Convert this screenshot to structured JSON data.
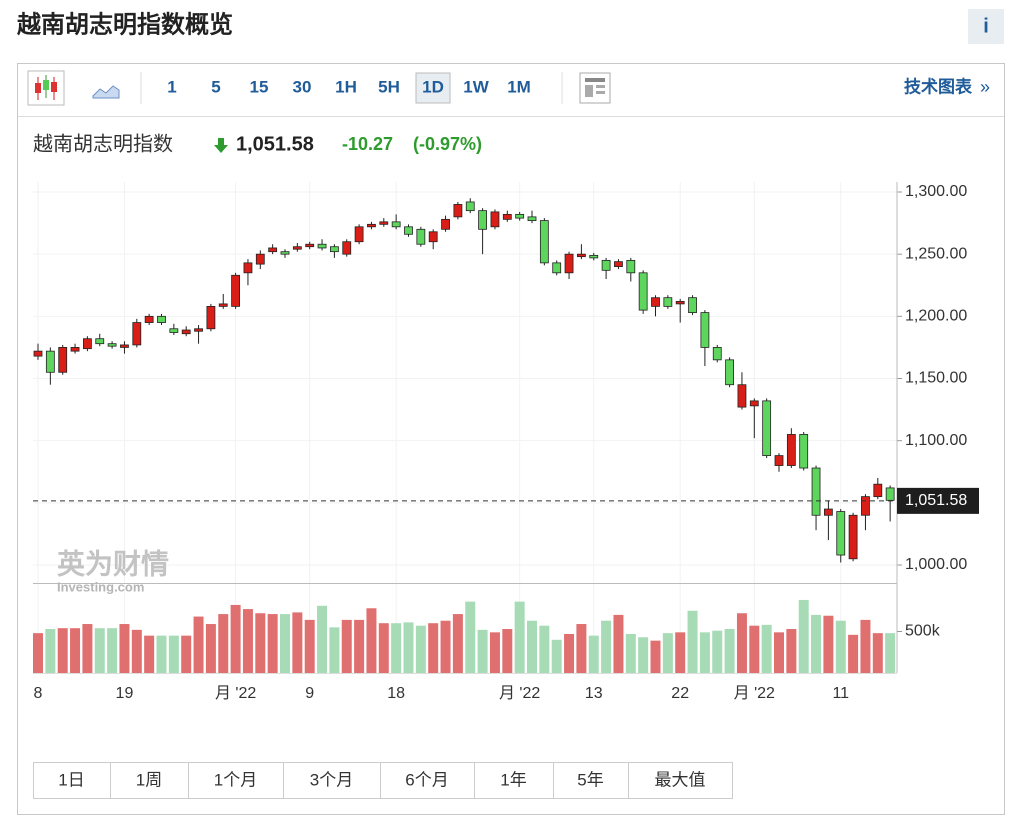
{
  "header": {
    "title": "越南胡志明指数概览",
    "info": "i"
  },
  "toolbar": {
    "intervals": [
      "1",
      "5",
      "15",
      "30",
      "1H",
      "5H",
      "1D",
      "1W",
      "1M"
    ],
    "selected": "1D",
    "advanced": "技术图表",
    "more": "»"
  },
  "quote": {
    "name": "越南胡志明指数",
    "price": "1,051.58",
    "change": "-10.27",
    "change_pct": "(-0.97%)"
  },
  "watermark": {
    "brand": "英为财情",
    "site": "Investing.com"
  },
  "periods": [
    "1日",
    "1周",
    "1个月",
    "3个月",
    "6个月",
    "1年",
    "5年",
    "最大值"
  ],
  "chart_data": {
    "type": "candlestick",
    "categories": [
      "8",
      null,
      null,
      null,
      null,
      null,
      null,
      "19",
      null,
      null,
      null,
      null,
      null,
      null,
      null,
      null,
      "月 '22",
      null,
      null,
      null,
      null,
      null,
      "9",
      null,
      null,
      null,
      null,
      null,
      null,
      "18",
      null,
      null,
      null,
      null,
      null,
      null,
      null,
      null,
      null,
      "月 '22",
      null,
      null,
      null,
      null,
      null,
      "13",
      null,
      null,
      null,
      null,
      null,
      null,
      "22",
      null,
      null,
      null,
      null,
      null,
      "月 '22",
      null,
      null,
      null,
      null,
      null,
      null,
      "11",
      null,
      null,
      null,
      null
    ],
    "open": [
      1168,
      1172,
      1155,
      1172,
      1174,
      1182,
      1178,
      1175,
      1177,
      1195,
      1200,
      1190,
      1186,
      1188,
      1190,
      1208,
      1208,
      1235,
      1242,
      1252,
      1252,
      1254,
      1256,
      1258,
      1256,
      1250,
      1260,
      1272,
      1274,
      1276,
      1272,
      1270,
      1260,
      1270,
      1280,
      1292,
      1285,
      1272,
      1278,
      1282,
      1280,
      1277,
      1243,
      1235,
      1248,
      1249,
      1245,
      1240,
      1245,
      1235,
      1208,
      1215,
      1210,
      1215,
      1203,
      1175,
      1165,
      1127,
      1128,
      1132,
      1080,
      1080,
      1105,
      1078,
      1040,
      1043,
      1005,
      1040,
      1055,
      1062
    ],
    "high": [
      1178,
      1175,
      1177,
      1178,
      1184,
      1186,
      1180,
      1180,
      1198,
      1202,
      1202,
      1194,
      1192,
      1193,
      1210,
      1218,
      1235,
      1246,
      1253,
      1258,
      1254,
      1259,
      1260,
      1262,
      1258,
      1262,
      1274,
      1276,
      1279,
      1282,
      1274,
      1272,
      1270,
      1281,
      1292,
      1295,
      1287,
      1286,
      1285,
      1284,
      1285,
      1279,
      1245,
      1252,
      1258,
      1251,
      1247,
      1246,
      1247,
      1237,
      1217,
      1217,
      1214,
      1217,
      1205,
      1177,
      1167,
      1155,
      1134,
      1134,
      1090,
      1110,
      1107,
      1080,
      1052,
      1045,
      1042,
      1057,
      1070,
      1064
    ],
    "low": [
      1165,
      1145,
      1153,
      1170,
      1172,
      1176,
      1174,
      1170,
      1175,
      1193,
      1193,
      1185,
      1184,
      1178,
      1188,
      1206,
      1206,
      1225,
      1238,
      1250,
      1247,
      1252,
      1254,
      1253,
      1247,
      1248,
      1258,
      1270,
      1272,
      1270,
      1264,
      1256,
      1254,
      1268,
      1278,
      1283,
      1250,
      1270,
      1276,
      1277,
      1275,
      1241,
      1233,
      1230,
      1246,
      1245,
      1230,
      1238,
      1228,
      1202,
      1200,
      1206,
      1195,
      1201,
      1160,
      1163,
      1143,
      1125,
      1102,
      1086,
      1075,
      1078,
      1076,
      1028,
      1020,
      1002,
      1003,
      1028,
      1053,
      1035
    ],
    "close": [
      1172,
      1155,
      1175,
      1175,
      1182,
      1178,
      1176,
      1177,
      1195,
      1200,
      1195,
      1187,
      1189,
      1190,
      1208,
      1210,
      1233,
      1243,
      1250,
      1255,
      1250,
      1256,
      1258,
      1255,
      1252,
      1260,
      1272,
      1274,
      1276,
      1272,
      1266,
      1258,
      1268,
      1278,
      1290,
      1285,
      1270,
      1284,
      1282,
      1279,
      1277,
      1243,
      1235,
      1250,
      1250,
      1247,
      1237,
      1244,
      1235,
      1205,
      1215,
      1208,
      1212,
      1203,
      1175,
      1165,
      1145,
      1145,
      1132,
      1088,
      1088,
      1105,
      1078,
      1040,
      1045,
      1008,
      1040,
      1055,
      1065,
      1052
    ],
    "up_color": "#d91e18",
    "down_color": "#5ed65e",
    "ylim": [
      1000,
      1300
    ],
    "yticks": [
      {
        "value": 1000,
        "label": "1,000.00"
      },
      {
        "value": 1050,
        "label": "1,050.00"
      },
      {
        "value": 1100,
        "label": "1,100.00"
      },
      {
        "value": 1150,
        "label": "1,150.00"
      },
      {
        "value": 1200,
        "label": "1,200.00"
      },
      {
        "value": 1250,
        "label": "1,250.00"
      },
      {
        "value": 1300,
        "label": "1,300.00"
      }
    ],
    "last_price": {
      "value": 1051.58,
      "label": "1,051.58"
    },
    "volume": {
      "values": [
        480000,
        530000,
        540000,
        540000,
        590000,
        540000,
        540000,
        590000,
        520000,
        450000,
        450000,
        450000,
        450000,
        680000,
        590000,
        710000,
        820000,
        770000,
        720000,
        710000,
        710000,
        730000,
        640000,
        810000,
        550000,
        640000,
        640000,
        780000,
        600000,
        600000,
        610000,
        570000,
        600000,
        630000,
        710000,
        860000,
        520000,
        490000,
        530000,
        860000,
        630000,
        570000,
        400000,
        470000,
        590000,
        450000,
        630000,
        700000,
        470000,
        430000,
        390000,
        480000,
        490000,
        750000,
        490000,
        510000,
        530000,
        720000,
        570000,
        580000,
        490000,
        530000,
        880000,
        700000,
        690000,
        630000,
        460000,
        640000,
        480000,
        480000
      ],
      "up_color": "#e07070",
      "down_color": "#a6dbb6",
      "ylim": [
        0,
        1000000
      ],
      "yticks": [
        {
          "value": 500000,
          "label": "500k"
        }
      ]
    },
    "grid": true
  }
}
